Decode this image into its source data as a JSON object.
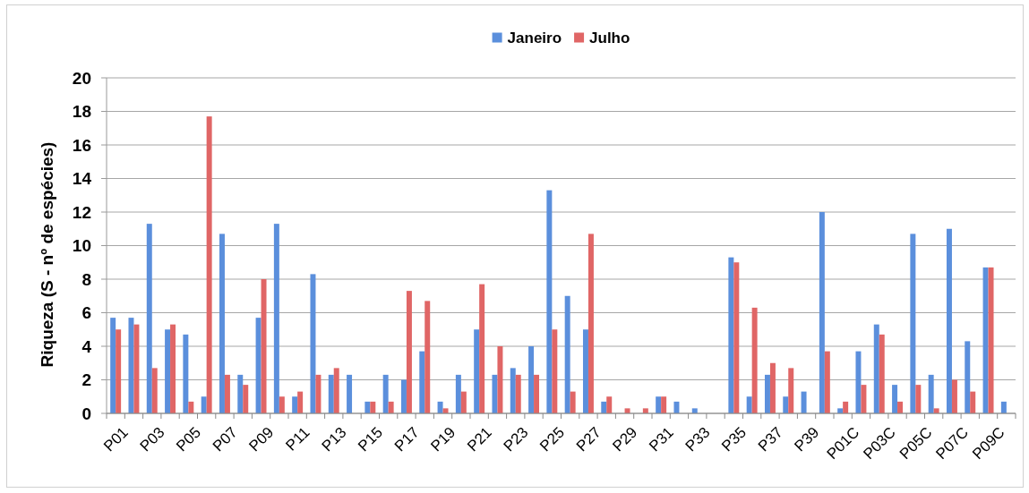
{
  "chart_data": {
    "type": "bar",
    "ylabel": "Riqueza (S - nº de espécies)",
    "categories": [
      "P01",
      null,
      "P03",
      null,
      "P05",
      null,
      "P07",
      null,
      "P09",
      null,
      "P11",
      null,
      "P13",
      null,
      "P15",
      null,
      "P17",
      null,
      "P19",
      null,
      "P21",
      null,
      "P23",
      null,
      "P25",
      null,
      "P27",
      null,
      "P29",
      null,
      "P31",
      null,
      "P33",
      null,
      "P35",
      null,
      "P37",
      null,
      "P39",
      null,
      "P01C",
      null,
      "P03C",
      null,
      "P05C",
      null,
      "P07C",
      null,
      "P09C",
      null
    ],
    "series": [
      {
        "name": "Janeiro",
        "color": "#5b8fdc",
        "values": [
          5.7,
          5.7,
          11.3,
          5.0,
          4.7,
          1.0,
          10.7,
          2.3,
          5.7,
          11.3,
          1.0,
          8.3,
          2.3,
          2.3,
          0.7,
          2.3,
          2.0,
          3.7,
          0.7,
          2.3,
          5.0,
          2.3,
          2.7,
          4.0,
          13.3,
          7.0,
          5.0,
          0.7,
          0,
          0,
          1.0,
          0.7,
          0.3,
          0,
          9.3,
          1.0,
          2.3,
          1.0,
          1.3,
          12.0,
          0.3,
          3.7,
          5.3,
          1.7,
          10.7,
          2.3,
          11.0,
          4.3,
          8.7,
          0.7
        ]
      },
      {
        "name": "Julho",
        "color": "#e06666",
        "values": [
          5.0,
          5.3,
          2.7,
          5.3,
          0.7,
          17.7,
          2.3,
          1.7,
          8.0,
          1.0,
          1.3,
          2.3,
          2.7,
          0,
          0.7,
          0.7,
          7.3,
          6.7,
          0.3,
          1.3,
          7.7,
          4.0,
          2.3,
          2.3,
          5.0,
          1.3,
          10.7,
          1.0,
          0.3,
          0.3,
          1.0,
          0,
          0,
          0,
          9.0,
          6.3,
          3.0,
          2.7,
          0,
          3.7,
          0.7,
          1.7,
          4.7,
          0.7,
          1.7,
          0.3,
          2.0,
          1.3,
          8.7,
          0
        ]
      }
    ],
    "ylim": [
      0,
      20
    ],
    "yticks": [
      0,
      2,
      4,
      6,
      8,
      10,
      12,
      14,
      16,
      18,
      20
    ],
    "grid": "y",
    "legend": "top"
  }
}
